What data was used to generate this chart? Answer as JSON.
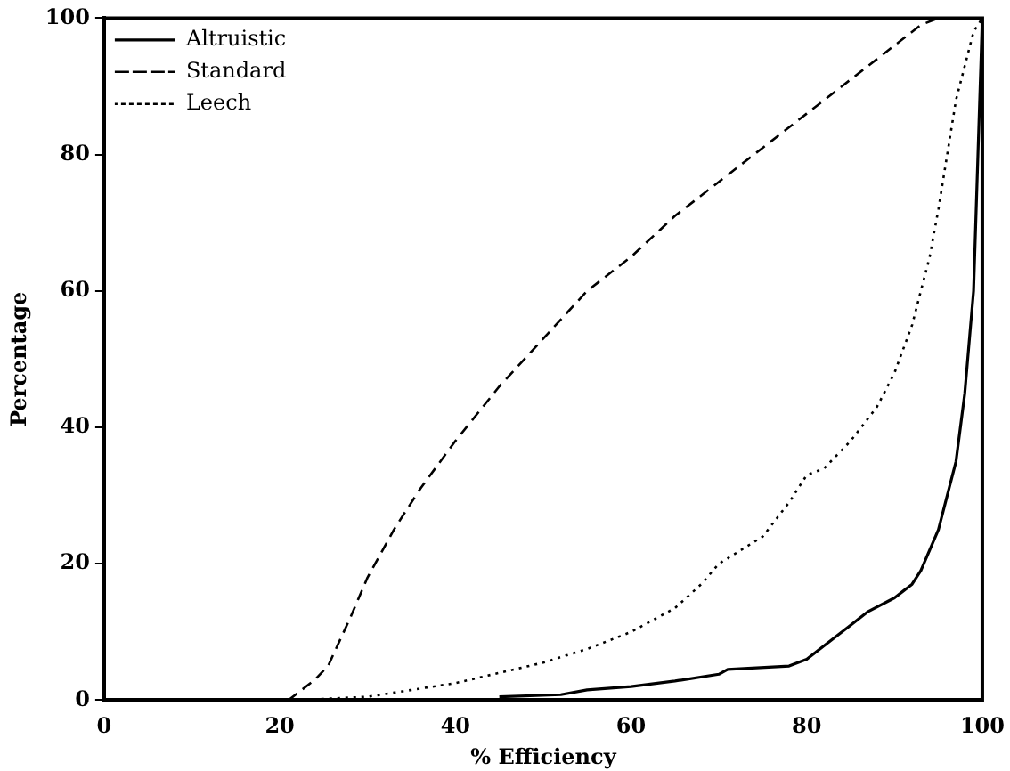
{
  "chart_data": {
    "type": "line",
    "xlabel": "% Efficiency",
    "ylabel": "Percentage",
    "xlim": [
      0,
      100
    ],
    "ylim": [
      0,
      100
    ],
    "xticks": [
      0,
      20,
      40,
      60,
      80,
      100
    ],
    "yticks": [
      0,
      20,
      40,
      60,
      80,
      100
    ],
    "grid": false,
    "legend": "top left",
    "marker": "none",
    "series": [
      {
        "name": "Altruistic",
        "color": "#000000",
        "line_style": "solid",
        "x": [
          45,
          52,
          55,
          60,
          65,
          70,
          71,
          78,
          80,
          83,
          85,
          87,
          90,
          92,
          93,
          94,
          95,
          96,
          97,
          98,
          99,
          99.5,
          100
        ],
        "values": [
          0.5,
          0.8,
          1.5,
          2,
          2.8,
          3.8,
          4.5,
          5,
          6,
          9,
          11,
          13,
          15,
          17,
          19,
          22,
          25,
          30,
          35,
          45,
          60,
          80,
          100
        ]
      },
      {
        "name": "Standard",
        "color": "#000000",
        "line_style": "dashed",
        "x": [
          21,
          24,
          25.5,
          28,
          30,
          33,
          36,
          40,
          45,
          50,
          55,
          60,
          65,
          70,
          75,
          80,
          85,
          90,
          93,
          95
        ],
        "values": [
          0,
          3,
          5,
          12,
          18,
          25,
          31,
          38,
          46,
          53,
          60,
          65,
          71,
          76,
          81,
          86,
          91,
          96,
          99,
          100
        ]
      },
      {
        "name": "Leech",
        "color": "#000000",
        "line_style": "dotted",
        "x": [
          22,
          30,
          40,
          45,
          50,
          55,
          60,
          65,
          68,
          70,
          75,
          78,
          80,
          82,
          85,
          88,
          90,
          92,
          93,
          94,
          95,
          96,
          97,
          98,
          99,
          100
        ],
        "values": [
          0,
          0.5,
          2.5,
          4,
          5.5,
          7.5,
          10,
          13.5,
          17,
          20,
          24,
          29,
          33,
          34,
          38,
          43,
          48,
          55,
          60,
          65,
          72,
          80,
          88,
          93,
          98,
          100
        ]
      }
    ]
  }
}
